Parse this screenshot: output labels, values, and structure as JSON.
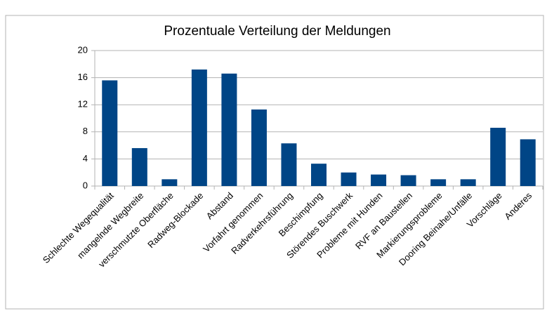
{
  "chart_data": {
    "type": "bar",
    "title": "Prozentuale Verteilung der Meldungen",
    "categories": [
      "Schlechte Wegequalität",
      "mangelnde Wegbreite",
      "verschmutzte Oberfläche",
      "Radweg-Blockade",
      "Abstand",
      "Vorfahrt genommen",
      "Radverkehrsführung",
      "Beschimpfung",
      "Störendes  Buschwerk",
      "Probleme mit Hunden",
      "RVF an Baustellen",
      "Markierungsprobleme",
      "Dooring Beinahe/Unfälle",
      "Vorschläge",
      "Anderes"
    ],
    "values": [
      15.6,
      5.6,
      1.0,
      17.2,
      16.6,
      11.3,
      6.3,
      3.3,
      2.0,
      1.7,
      1.6,
      1.0,
      1.0,
      8.6,
      6.9
    ],
    "color": "#004586",
    "ylim": [
      0,
      20
    ],
    "yticks": [
      0,
      4,
      8,
      12,
      16,
      20
    ],
    "grid": true
  }
}
